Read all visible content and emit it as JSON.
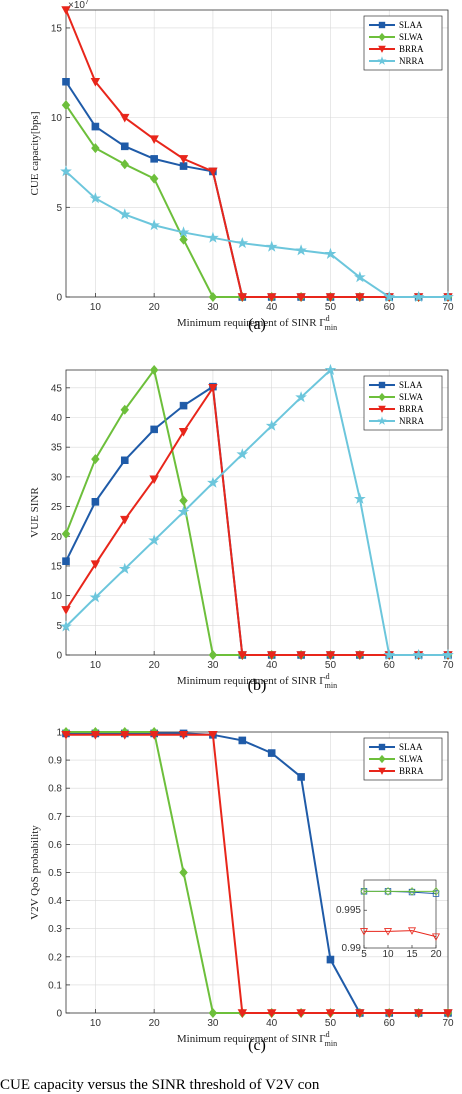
{
  "colors": {
    "SLAA": "#1f5ba8",
    "SLWA": "#6dbf3b",
    "BRRA": "#e8261b",
    "NRRA": "#6cc6dc"
  },
  "markers": {
    "SLAA": "square",
    "SLWA": "diamond",
    "BRRA": "triangle-down",
    "NRRA": "star"
  },
  "caption": "CUE capacity versus the SINR threshold of V2V con",
  "chart_data": [
    {
      "type": "line",
      "panel": "(a)",
      "xlabel": "Minimum requirement of SINR Γ",
      "xlabel_sup": "d",
      "xlabel_sub": "min",
      "ylabel": "CUE capacity[bps]",
      "y_exponent": "×10",
      "y_exponent_power": "7",
      "xlim": [
        5,
        70
      ],
      "ylim": [
        0,
        16
      ],
      "xticks": [
        10,
        20,
        30,
        40,
        50,
        60,
        70
      ],
      "yticks": [
        0,
        5,
        10,
        15
      ],
      "x": [
        5,
        10,
        15,
        20,
        25,
        30,
        35,
        40,
        45,
        50,
        55,
        60,
        65,
        70
      ],
      "legend": "top-right",
      "grid": true,
      "series": [
        {
          "name": "SLAA",
          "values": [
            12,
            9.5,
            8.4,
            7.7,
            7.3,
            7.0,
            0,
            0,
            0,
            0,
            0,
            0,
            0,
            0
          ]
        },
        {
          "name": "SLWA",
          "values": [
            10.7,
            8.3,
            7.4,
            6.6,
            3.2,
            0,
            0,
            0,
            0,
            0,
            0,
            0,
            0,
            0
          ]
        },
        {
          "name": "BRRA",
          "values": [
            16,
            12,
            10,
            8.8,
            7.7,
            7.0,
            0,
            0,
            0,
            0,
            0,
            0,
            0,
            0
          ]
        },
        {
          "name": "NRRA",
          "values": [
            7.0,
            5.5,
            4.6,
            4.0,
            3.6,
            3.3,
            3.0,
            2.8,
            2.6,
            2.4,
            1.1,
            0,
            0,
            0
          ]
        }
      ]
    },
    {
      "type": "line",
      "panel": "(b)",
      "xlabel": "Minimum requirement of SINR Γ",
      "xlabel_sup": "d",
      "xlabel_sub": "min",
      "ylabel": "VUE SINR",
      "xlim": [
        5,
        70
      ],
      "ylim": [
        0,
        48
      ],
      "xticks": [
        10,
        20,
        30,
        40,
        50,
        60,
        70
      ],
      "yticks": [
        0,
        5,
        10,
        15,
        20,
        25,
        30,
        35,
        40,
        45
      ],
      "x": [
        5,
        10,
        15,
        20,
        25,
        30,
        35,
        40,
        45,
        50,
        55,
        60,
        65,
        70
      ],
      "legend": "top-right",
      "grid": true,
      "series": [
        {
          "name": "SLAA",
          "values": [
            15.8,
            25.8,
            32.8,
            38,
            42,
            45.2,
            0,
            0,
            0,
            0,
            0,
            0,
            0,
            0
          ]
        },
        {
          "name": "SLWA",
          "values": [
            20.4,
            33,
            41.3,
            48,
            26,
            0,
            0,
            0,
            0,
            0,
            0,
            0,
            0,
            0
          ]
        },
        {
          "name": "BRRA",
          "values": [
            7.6,
            15.3,
            22.8,
            29.6,
            37.6,
            45,
            0,
            0,
            0,
            0,
            0,
            0,
            0,
            0
          ]
        },
        {
          "name": "NRRA",
          "values": [
            4.8,
            9.7,
            14.5,
            19.3,
            24.1,
            29,
            33.8,
            38.6,
            43.4,
            48,
            26.3,
            0,
            0,
            0
          ]
        }
      ]
    },
    {
      "type": "line",
      "panel": "(c)",
      "xlabel": "Minimum requirement of SINR Γ",
      "xlabel_sup": "d",
      "xlabel_sub": "min",
      "ylabel": "V2V QoS probability",
      "xlim": [
        5,
        70
      ],
      "ylim": [
        0,
        1
      ],
      "xticks": [
        10,
        20,
        30,
        40,
        50,
        60,
        70
      ],
      "yticks": [
        0,
        0.1,
        0.2,
        0.3,
        0.4,
        0.5,
        0.6,
        0.7,
        0.8,
        0.9,
        1
      ],
      "x": [
        5,
        10,
        15,
        20,
        25,
        30,
        35,
        40,
        45,
        50,
        55,
        60,
        65,
        70
      ],
      "legend": "top-right",
      "grid": true,
      "series": [
        {
          "name": "SLAA",
          "values": [
            0.995,
            0.995,
            0.995,
            0.995,
            0.995,
            0.99,
            0.97,
            0.925,
            0.84,
            0.19,
            0,
            0,
            0,
            0
          ]
        },
        {
          "name": "SLWA",
          "values": [
            1.0,
            1.0,
            1.0,
            1.0,
            0.5,
            0,
            0,
            0,
            0,
            0,
            0,
            0,
            0,
            0
          ]
        },
        {
          "name": "BRRA",
          "values": [
            0.99,
            0.99,
            0.99,
            0.99,
            0.99,
            0.99,
            0,
            0,
            0,
            0,
            0,
            0,
            0,
            0
          ]
        }
      ],
      "inset": {
        "xlim": [
          5,
          20
        ],
        "ylim": [
          0.99,
          0.999
        ],
        "xticks": [
          5,
          10,
          15,
          20
        ],
        "yticks": [
          0.99,
          0.995
        ],
        "x": [
          5,
          10,
          15,
          20
        ],
        "series": [
          {
            "name": "SLAA",
            "values": [
              0.9975,
              0.9975,
              0.9974,
              0.9972
            ]
          },
          {
            "name": "SLWA",
            "values": [
              0.9975,
              0.9975,
              0.9975,
              0.9975
            ]
          },
          {
            "name": "BRRA",
            "values": [
              0.9922,
              0.9922,
              0.9923,
              0.9915
            ]
          }
        ]
      }
    }
  ]
}
